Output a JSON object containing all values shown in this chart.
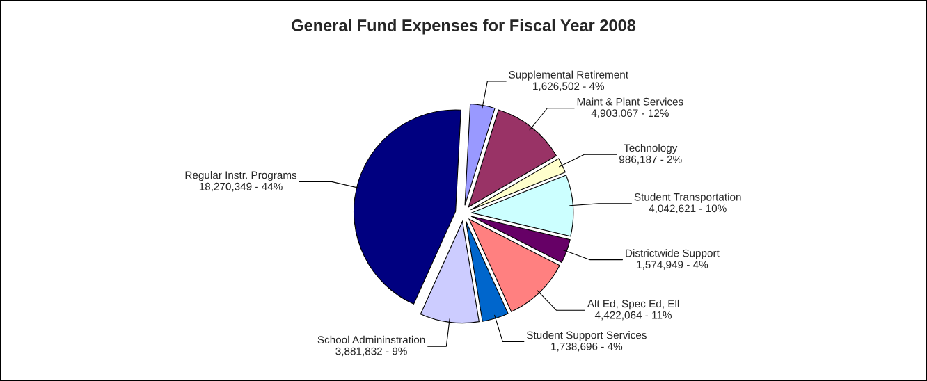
{
  "chart_data": {
    "type": "pie",
    "title": "General Fund Expenses for Fiscal Year 2008",
    "categories": [
      "Supplemental Retirement",
      "Maint & Plant Services",
      "Technology",
      "Student Transportation",
      "Districtwide Support",
      "Alt Ed, Spec Ed, Ell",
      "Student Support Services",
      "School Admininstration",
      "Regular Instr. Programs"
    ],
    "values": [
      1626502,
      4903067,
      986187,
      4042621,
      1574949,
      4422064,
      1738696,
      3881832,
      18270349
    ],
    "value_labels": [
      "1,626,502 - 4%",
      "4,903,067 - 12%",
      "986,187 - 2%",
      "4,042,621 - 10%",
      "1,574,949 - 4%",
      "4,422,064 - 11%",
      "1,738,696 - 4%",
      "3,881,832 - 9%",
      "18,270,349 - 44%"
    ],
    "colors": [
      "#9999ff",
      "#993366",
      "#ffffcc",
      "#ccffff",
      "#660066",
      "#ff8080",
      "#0066cc",
      "#ccccff",
      "#000080"
    ]
  }
}
